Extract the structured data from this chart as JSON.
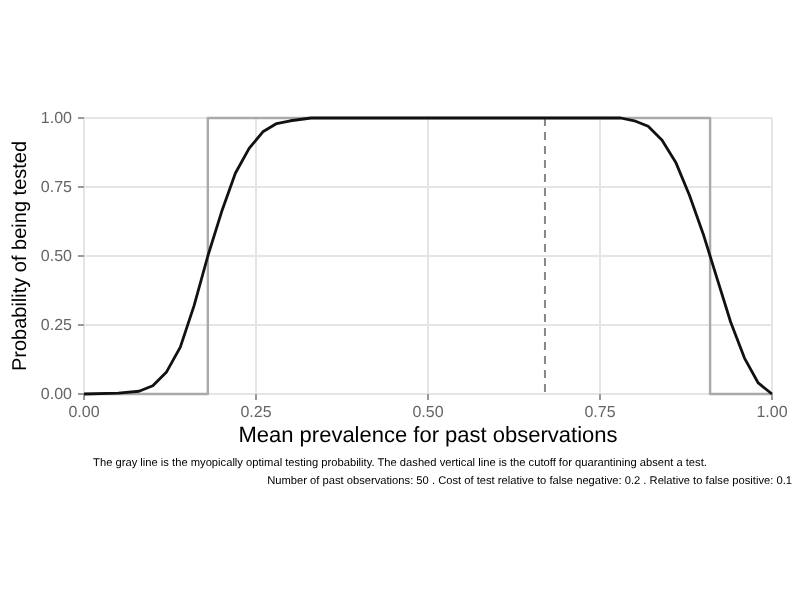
{
  "chart_data": {
    "type": "line",
    "xlabel": "Mean prevalence for past observations",
    "ylabel": "Probability of being tested",
    "xlim": [
      0,
      1
    ],
    "ylim": [
      0,
      1
    ],
    "xticks": [
      {
        "value": 0,
        "label": "0.00"
      },
      {
        "value": 0.25,
        "label": "0.25"
      },
      {
        "value": 0.5,
        "label": "0.50"
      },
      {
        "value": 0.75,
        "label": "0.75"
      },
      {
        "value": 1,
        "label": "1.00"
      }
    ],
    "yticks": [
      {
        "value": 0,
        "label": "0.00"
      },
      {
        "value": 0.25,
        "label": "0.25"
      },
      {
        "value": 0.5,
        "label": "0.50"
      },
      {
        "value": 0.75,
        "label": "0.75"
      },
      {
        "value": 1,
        "label": "1.00"
      }
    ],
    "grid": true,
    "series": [
      {
        "color": "#aaaaaa",
        "x": [
          0,
          0.18,
          0.18,
          0.91,
          0.91,
          1
        ],
        "values": [
          0,
          0,
          1,
          1,
          0,
          0
        ]
      },
      {
        "color": "#111111",
        "x": [
          0,
          0.05,
          0.08,
          0.1,
          0.12,
          0.14,
          0.16,
          0.18,
          0.2,
          0.22,
          0.24,
          0.26,
          0.28,
          0.3,
          0.33,
          0.78,
          0.8,
          0.82,
          0.84,
          0.86,
          0.88,
          0.9,
          0.92,
          0.94,
          0.96,
          0.98,
          1
        ],
        "values": [
          0,
          0.003,
          0.01,
          0.03,
          0.08,
          0.17,
          0.32,
          0.5,
          0.66,
          0.8,
          0.89,
          0.95,
          0.98,
          0.99,
          1,
          1,
          0.99,
          0.97,
          0.92,
          0.84,
          0.72,
          0.58,
          0.42,
          0.26,
          0.13,
          0.04,
          0
        ]
      }
    ],
    "ref_lines": [
      {
        "axis": "x",
        "value": 0.67,
        "color": "#888888",
        "line_style": "dashed"
      }
    ],
    "annotations": [
      "The gray line is the myopically optimal testing probability. The dashed vertical line is the cutoff for quarantining absent a test.",
      "Number of past observations: 50 . Cost of test relative to false negative: 0.2 . Relative to false positive: 0.1"
    ]
  }
}
